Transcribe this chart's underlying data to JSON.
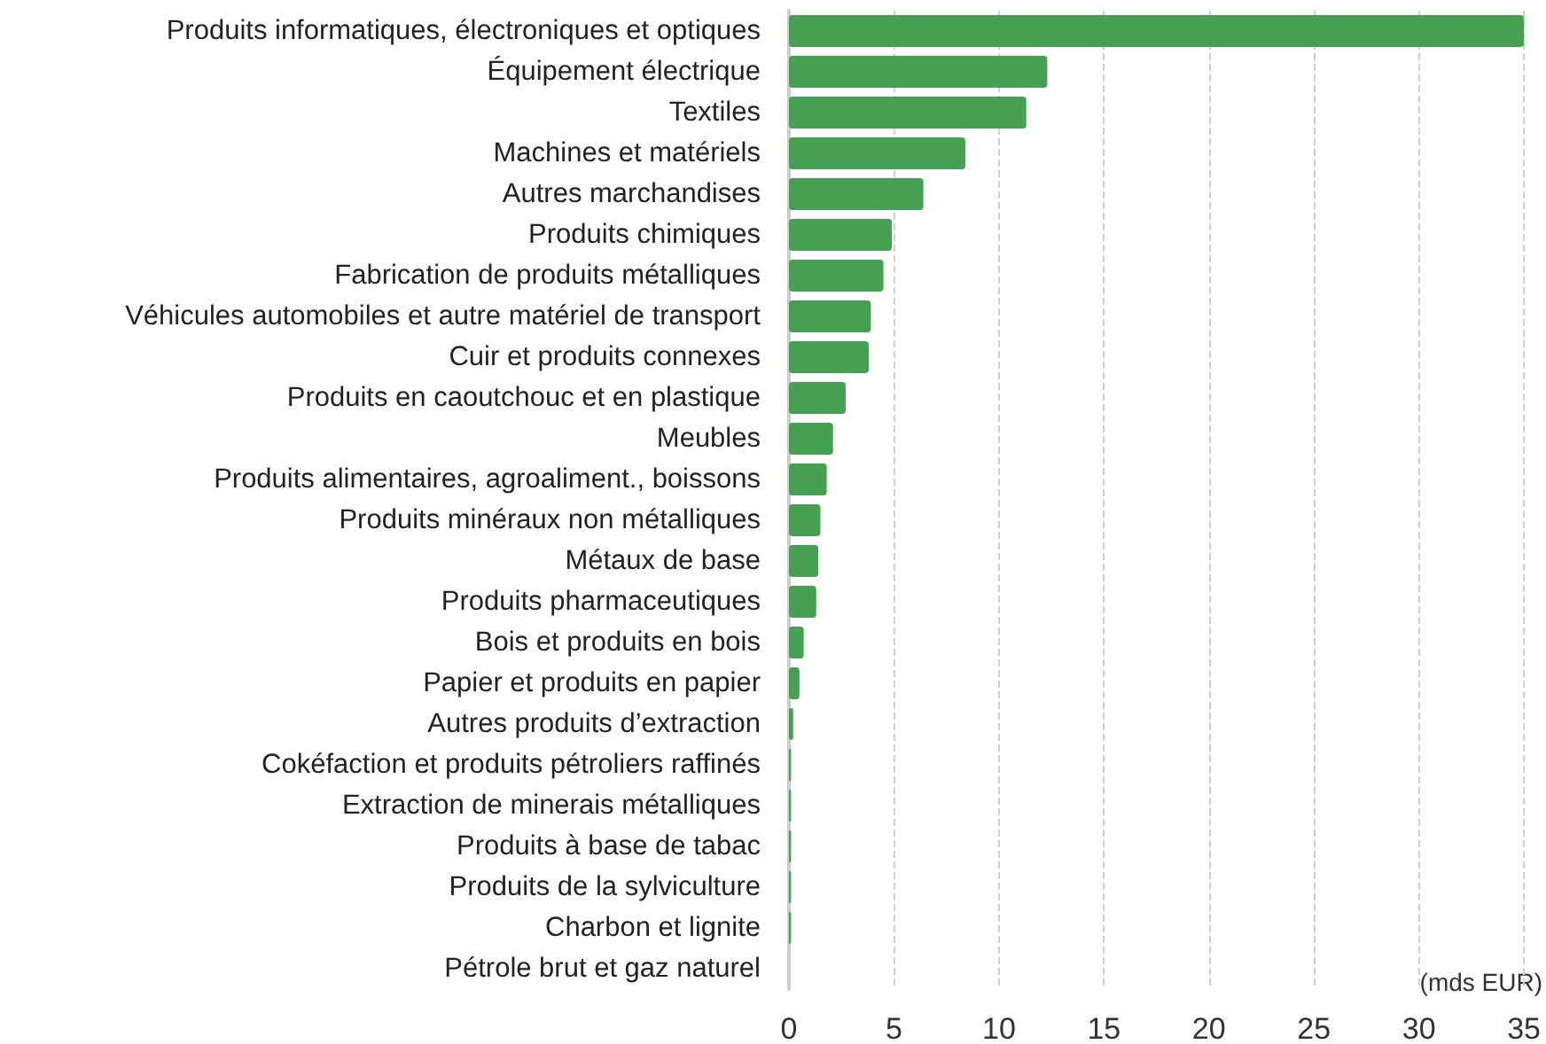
{
  "chart_data": {
    "type": "bar",
    "orientation": "horizontal",
    "xlabel": "(mds EUR)",
    "categories": [
      "Produits informatiques, électroniques et optiques",
      "Équipement électrique",
      "Textiles",
      "Machines et matériels",
      "Autres marchandises",
      "Produits chimiques",
      "Fabrication de produits métalliques",
      "Véhicules automobiles et autre matériel de transport",
      "Cuir et produits connexes",
      "Produits en caoutchouc et en plastique",
      "Meubles",
      "Produits alimentaires, agroaliment., boissons",
      "Produits minéraux non métalliques",
      "Métaux de base",
      "Produits pharmaceutiques",
      "Bois et produits en bois",
      "Papier et produits en papier",
      "Autres produits d’extraction",
      "Cokéfaction et produits pétroliers raffinés",
      "Extraction de minerais métalliques",
      "Produits à base de tabac",
      "Produits de la sylviculture",
      "Charbon et lignite",
      "Pétrole brut et gaz naturel"
    ],
    "values": [
      35,
      12.3,
      11.3,
      8.4,
      6.4,
      4.9,
      4.5,
      3.9,
      3.8,
      2.7,
      2.1,
      1.8,
      1.5,
      1.4,
      1.3,
      0.7,
      0.5,
      0.2,
      0.1,
      0.1,
      0.1,
      0.1,
      0.1,
      0
    ],
    "color": "#46a051",
    "xlim": [
      0,
      35
    ],
    "xticks": [
      0,
      5,
      10,
      15,
      20,
      25,
      30,
      35
    ],
    "grid": "x"
  }
}
